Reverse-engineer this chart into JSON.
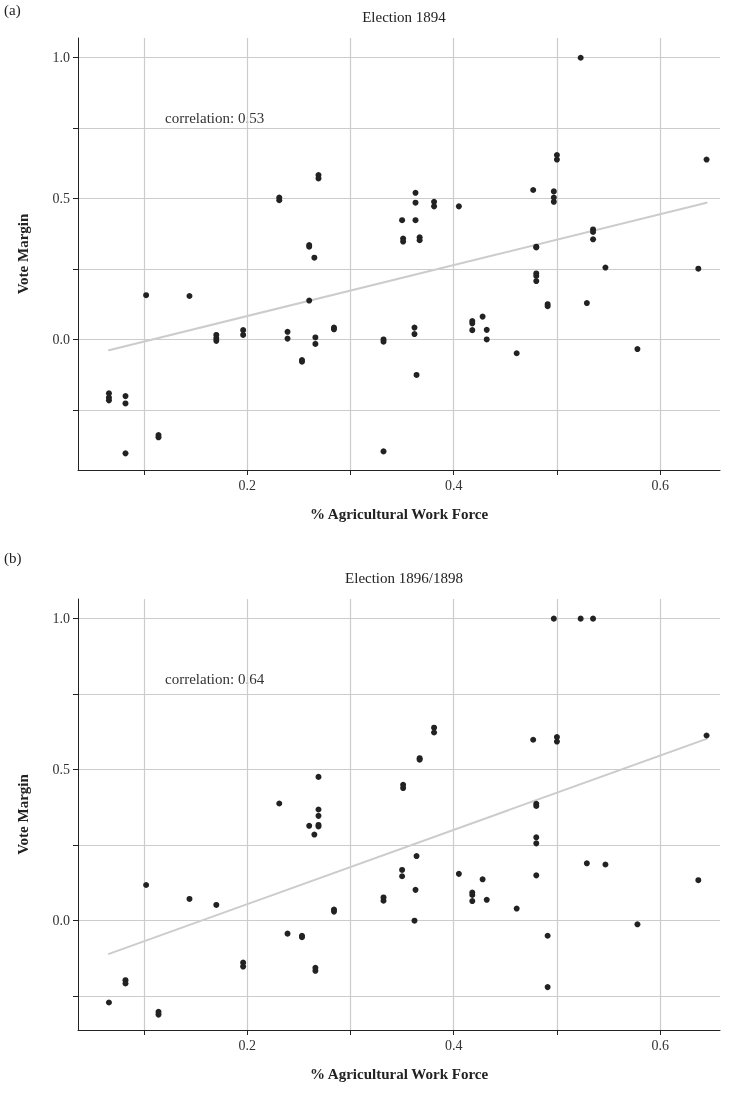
{
  "chart_data": [
    {
      "type": "scatter",
      "title": "Election 1894",
      "xlabel": "% Agricultural Work Force",
      "ylabel": "Vote Margin",
      "annotations": [
        "(a)",
        "correlation: 0.53"
      ],
      "xlim": [
        0.036,
        0.658
      ],
      "ylim": [
        -0.462,
        1.07
      ],
      "xticks": [
        {
          "value": 0.1,
          "label": null
        },
        0.2,
        {
          "value": 0.3,
          "label": null
        },
        0.4,
        {
          "value": 0.5,
          "label": null
        },
        0.6
      ],
      "yticks": [
        {
          "value": -0.25,
          "label": null
        },
        {
          "value": 0,
          "label": "0.0"
        },
        {
          "value": 0.25,
          "label": null
        },
        0.5,
        {
          "value": 0.75,
          "label": null
        },
        {
          "value": 1,
          "label": "1.0"
        }
      ],
      "grid": true,
      "marker": "circle",
      "series": [
        {
          "type": "scatter",
          "color": "#222222",
          "x": [
            0.066,
            0.066,
            0.066,
            0.082,
            0.082,
            0.082,
            0.102,
            0.114,
            0.114,
            0.144,
            0.17,
            0.17,
            0.17,
            0.196,
            0.196,
            0.231,
            0.231,
            0.239,
            0.239,
            0.253,
            0.253,
            0.26,
            0.26,
            0.26,
            0.265,
            0.266,
            0.266,
            0.269,
            0.269,
            0.284,
            0.284,
            0.332,
            0.332,
            0.332,
            0.35,
            0.351,
            0.351,
            0.362,
            0.362,
            0.363,
            0.363,
            0.363,
            0.364,
            0.367,
            0.367,
            0.381,
            0.381,
            0.405,
            0.418,
            0.418,
            0.418,
            0.428,
            0.432,
            0.432,
            0.461,
            0.477,
            0.48,
            0.48,
            0.48,
            0.48,
            0.48,
            0.491,
            0.491,
            0.497,
            0.497,
            0.497,
            0.5,
            0.5,
            0.523,
            0.529,
            0.535,
            0.535,
            0.535,
            0.547,
            0.578,
            0.637,
            0.645
          ],
          "values": [
            -0.19,
            -0.205,
            -0.215,
            -0.2,
            -0.226,
            -0.403,
            0.158,
            -0.338,
            -0.346,
            0.155,
            0.017,
            0.005,
            -0.004,
            0.034,
            0.017,
            0.504,
            0.495,
            0.028,
            0.004,
            -0.072,
            -0.078,
            0.336,
            0.33,
            0.139,
            0.291,
            0.008,
            -0.015,
            0.584,
            0.572,
            0.043,
            0.037,
            0.001,
            -0.007,
            -0.396,
            0.424,
            0.359,
            0.348,
            0.043,
            0.02,
            0.521,
            0.486,
            0.424,
            -0.125,
            0.363,
            0.353,
            0.489,
            0.473,
            0.473,
            0.066,
            0.058,
            0.034,
            0.082,
            0.035,
            0.001,
            -0.048,
            0.531,
            0.33,
            0.327,
            0.235,
            0.226,
            0.208,
            0.126,
            0.119,
            0.526,
            0.504,
            0.489,
            0.655,
            0.639,
            1.0,
            0.13,
            0.391,
            0.382,
            0.356,
            0.256,
            -0.033,
            0.252,
            0.639
          ]
        },
        {
          "type": "line",
          "color": "#cccccc",
          "marker": "none",
          "x": [
            0.066,
            0.645
          ],
          "values": [
            -0.037,
            0.486
          ]
        }
      ]
    },
    {
      "type": "scatter",
      "title": "Election 1896/1898",
      "xlabel": "% Agricultural Work Force",
      "ylabel": "Vote Margin",
      "annotations": [
        "(b)",
        "correlation: 0.64"
      ],
      "xlim": [
        0.036,
        0.658
      ],
      "ylim": [
        -0.362,
        1.065
      ],
      "xticks": [
        {
          "value": 0.1,
          "label": null
        },
        0.2,
        {
          "value": 0.3,
          "label": null
        },
        0.4,
        {
          "value": 0.5,
          "label": null
        },
        0.6
      ],
      "yticks": [
        {
          "value": -0.25,
          "label": null
        },
        {
          "value": 0,
          "label": "0.0"
        },
        {
          "value": 0.25,
          "label": null
        },
        0.5,
        {
          "value": 0.75,
          "label": null
        },
        {
          "value": 1,
          "label": "1.0"
        }
      ],
      "grid": true,
      "marker": "circle",
      "series": [
        {
          "type": "scatter",
          "color": "#222222",
          "x": [
            0.066,
            0.082,
            0.082,
            0.102,
            0.114,
            0.114,
            0.144,
            0.17,
            0.196,
            0.196,
            0.231,
            0.239,
            0.253,
            0.253,
            0.26,
            0.265,
            0.266,
            0.266,
            0.269,
            0.269,
            0.269,
            0.269,
            0.269,
            0.284,
            0.284,
            0.332,
            0.332,
            0.35,
            0.35,
            0.351,
            0.351,
            0.362,
            0.363,
            0.364,
            0.367,
            0.367,
            0.381,
            0.381,
            0.405,
            0.418,
            0.418,
            0.418,
            0.428,
            0.432,
            0.461,
            0.477,
            0.48,
            0.48,
            0.48,
            0.48,
            0.48,
            0.491,
            0.491,
            0.497,
            0.5,
            0.5,
            0.523,
            0.529,
            0.535,
            0.547,
            0.578,
            0.637,
            0.645
          ],
          "values": [
            -0.271,
            -0.197,
            -0.208,
            0.118,
            -0.302,
            -0.311,
            0.072,
            0.052,
            -0.139,
            -0.152,
            0.388,
            -0.043,
            -0.05,
            -0.055,
            0.314,
            0.285,
            -0.156,
            -0.166,
            0.476,
            0.368,
            0.347,
            0.317,
            0.312,
            0.037,
            0.03,
            0.077,
            0.066,
            0.168,
            0.147,
            0.45,
            0.439,
            0.0,
            0.102,
            0.214,
            0.538,
            0.533,
            0.639,
            0.623,
            0.155,
            0.093,
            0.085,
            0.065,
            0.137,
            0.069,
            0.04,
            0.599,
            0.387,
            0.38,
            0.276,
            0.256,
            0.15,
            -0.05,
            -0.22,
            1.0,
            0.608,
            0.593,
            1.0,
            0.19,
            1.0,
            0.186,
            -0.012,
            0.134,
            0.613
          ]
        },
        {
          "type": "line",
          "color": "#cccccc",
          "marker": "none",
          "x": [
            0.066,
            0.645
          ],
          "values": [
            -0.11,
            0.602
          ]
        }
      ]
    }
  ]
}
